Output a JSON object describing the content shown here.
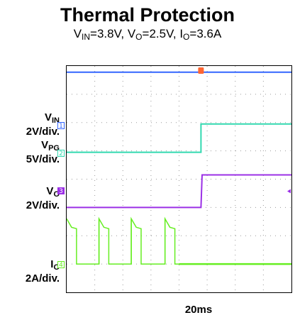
{
  "title": "Thermal Protection",
  "subtitle": {
    "vin_label": "V",
    "vin_sub": "IN",
    "vin_val": "=3.8V, ",
    "vo_label": "V",
    "vo_sub": "O",
    "vo_val": "=2.5V, ",
    "io_label": "I",
    "io_sub": "O",
    "io_val": "=3.6A"
  },
  "channels": [
    {
      "id": "vin",
      "name": "V",
      "sub": "IN",
      "scale": "2V/div.",
      "marker": "1",
      "color": "#3366ff"
    },
    {
      "id": "vpg",
      "name": "V",
      "sub": "PG",
      "scale": "5V/div.",
      "marker": "2",
      "color": "#33d9b0"
    },
    {
      "id": "vo",
      "name": "V",
      "sub": "O",
      "scale": "2V/div.",
      "marker": "3",
      "color": "#9b30e6"
    },
    {
      "id": "io",
      "name": "I",
      "sub": "O",
      "scale": "2A/div.",
      "marker": "4",
      "color": "#66ee22"
    }
  ],
  "timebase": "20ms",
  "trigger_color": "#ff6633",
  "chart_data": {
    "type": "line",
    "title": "Thermal Protection",
    "subtitle": "VIN=3.8V, VO=2.5V, IO=3.6A",
    "xlabel": "20ms",
    "x_unit": "div",
    "xlim": [
      0,
      8
    ],
    "ylim": [
      0,
      8
    ],
    "grid": true,
    "series": [
      {
        "name": "VIN",
        "color": "#3366ff",
        "points": [
          [
            0,
            7.78
          ],
          [
            8,
            7.78
          ]
        ]
      },
      {
        "name": "VPG",
        "color": "#33d9b0",
        "points": [
          [
            0,
            4.95
          ],
          [
            4.78,
            4.95
          ],
          [
            4.78,
            5.95
          ],
          [
            8,
            5.95
          ]
        ]
      },
      {
        "name": "VO",
        "color": "#9b30e6",
        "points": [
          [
            0,
            3.0
          ],
          [
            4.78,
            3.0
          ],
          [
            4.82,
            4.15
          ],
          [
            8,
            4.15
          ]
        ]
      },
      {
        "name": "IO",
        "color": "#66ee22",
        "pulses_start": [
          0.0,
          1.15,
          2.3,
          3.5
        ],
        "pulse_width": 0.35,
        "peak": 2.6,
        "droop_to": 2.3,
        "baseline": 1.0,
        "tail_start": 4.0,
        "tail_end": 8.0
      }
    ]
  }
}
